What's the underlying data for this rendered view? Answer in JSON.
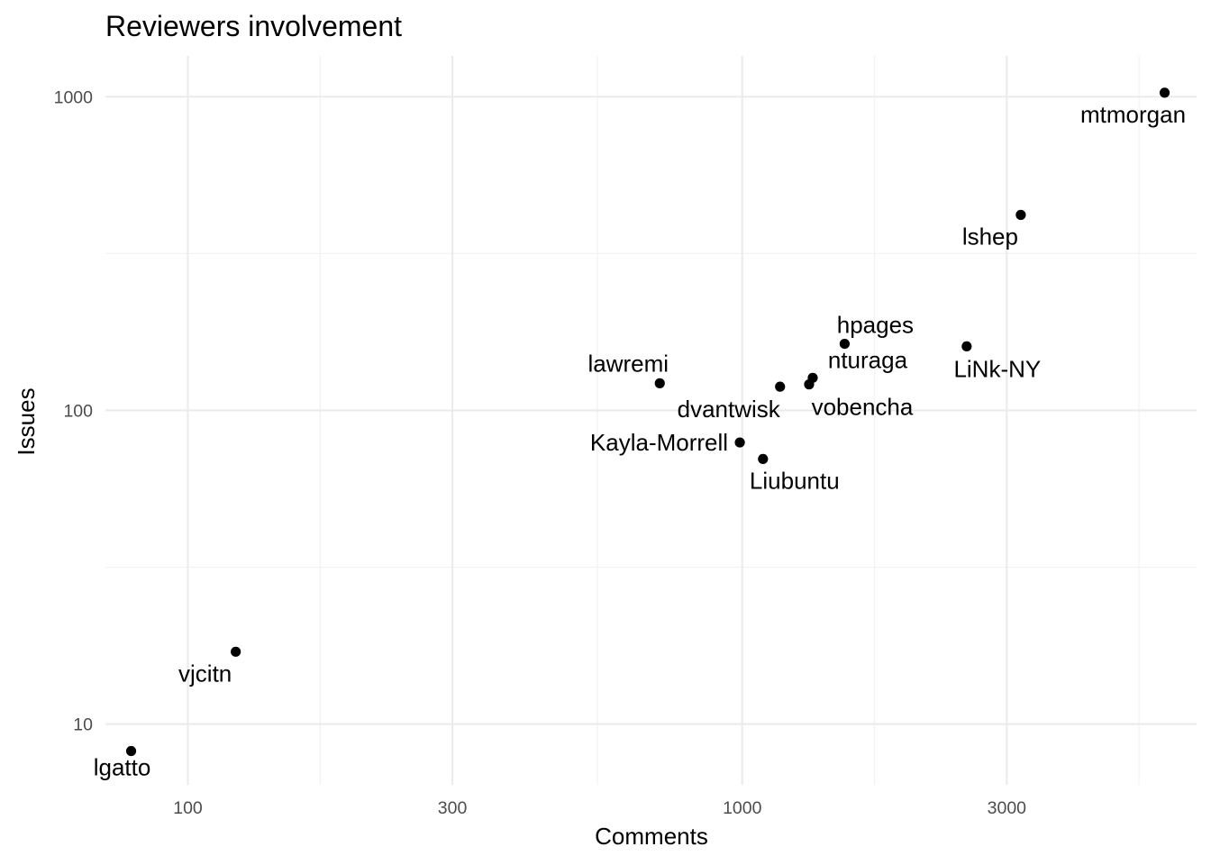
{
  "chart_data": {
    "type": "scatter",
    "title": "Reviewers involvement",
    "xlabel": "Comments",
    "ylabel": "Issues",
    "x_scale": "log10",
    "y_scale": "log10",
    "xlim": [
      71,
      6600
    ],
    "ylim": [
      6.4,
      1350
    ],
    "x_ticks": [
      {
        "value": 100,
        "label": "100"
      },
      {
        "value": 300,
        "label": "300"
      },
      {
        "value": 1000,
        "label": "1000"
      },
      {
        "value": 3000,
        "label": "3000"
      }
    ],
    "y_ticks": [
      {
        "value": 10,
        "label": "10"
      },
      {
        "value": 100,
        "label": "100"
      },
      {
        "value": 1000,
        "label": "1000"
      }
    ],
    "grid": true,
    "legend": "none",
    "points": [
      {
        "label": "mtmorgan",
        "x": 5780,
        "y": 1030
      },
      {
        "label": "lshep",
        "x": 3180,
        "y": 420
      },
      {
        "label": "LiNk-NY",
        "x": 2540,
        "y": 160
      },
      {
        "label": "hpages",
        "x": 1530,
        "y": 163
      },
      {
        "label": "nturaga",
        "x": 1340,
        "y": 127
      },
      {
        "label": "vobencha",
        "x": 1320,
        "y": 121
      },
      {
        "label": "dvantwisk",
        "x": 1170,
        "y": 119
      },
      {
        "label": "lawremi",
        "x": 710,
        "y": 122
      },
      {
        "label": "Kayla-Morrell",
        "x": 990,
        "y": 79
      },
      {
        "label": "Liubuntu",
        "x": 1090,
        "y": 70
      },
      {
        "label": "vjcitn",
        "x": 122,
        "y": 17
      },
      {
        "label": "lgatto",
        "x": 79,
        "y": 8.2
      }
    ]
  }
}
